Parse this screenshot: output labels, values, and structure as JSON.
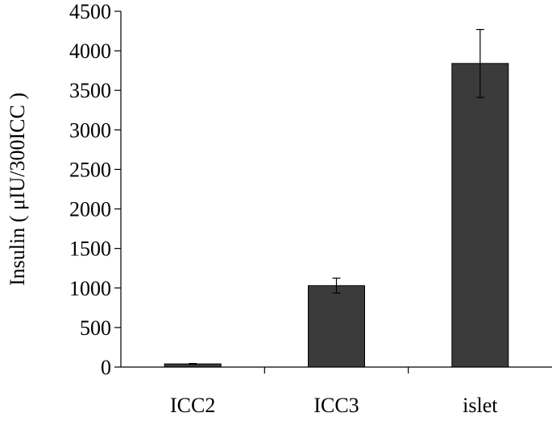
{
  "chart_data": {
    "type": "bar",
    "title": "",
    "xlabel": "",
    "ylabel": "Insulin ( μIU/300ICC )",
    "categories": [
      "ICC2",
      "ICC3",
      "islet"
    ],
    "values": [
      40,
      1030,
      3840
    ],
    "error_bars": [
      5,
      95,
      430
    ],
    "ylim": [
      0,
      4500
    ],
    "yticks": [
      "0",
      "500",
      "1000",
      "1500",
      "2000",
      "2500",
      "3000",
      "3500",
      "4000",
      "4500"
    ],
    "grid": false,
    "legend": "none",
    "bar_color": "#3b3b3b"
  }
}
